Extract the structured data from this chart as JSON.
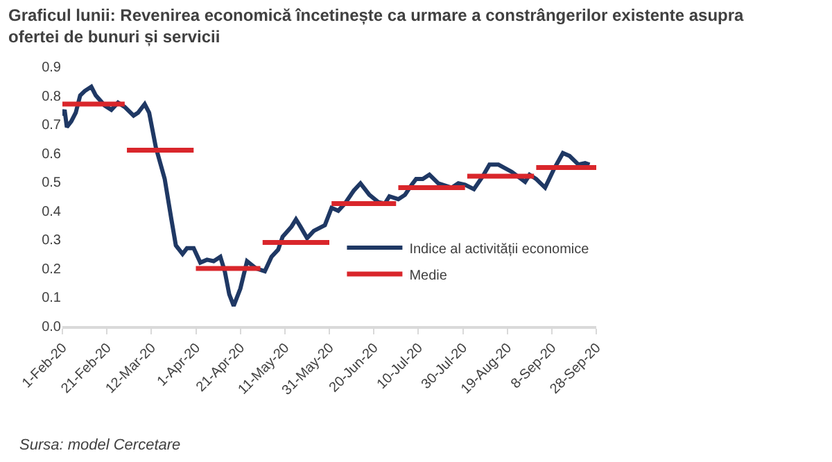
{
  "chart_data": {
    "type": "line",
    "title": "Graficul lunii: Revenirea economică încetinește ca urmare a constrângerilor existente asupra ofertei de bunuri și servicii",
    "annotations": [
      "Sursa: model Cercetare"
    ],
    "series": [
      {
        "name": "Indice al activității economice",
        "color": "#1f3864",
        "x": [
          "2020-02-01",
          "2020-02-02",
          "2020-02-03",
          "2020-02-05",
          "2020-02-07",
          "2020-02-09",
          "2020-02-11",
          "2020-02-14",
          "2020-02-16",
          "2020-02-20",
          "2020-02-23",
          "2020-02-26",
          "2020-02-29",
          "2020-03-04",
          "2020-03-06",
          "2020-03-09",
          "2020-03-11",
          "2020-03-14",
          "2020-03-18",
          "2020-03-21",
          "2020-03-23",
          "2020-03-26",
          "2020-03-28",
          "2020-03-31",
          "2020-04-03",
          "2020-04-06",
          "2020-04-09",
          "2020-04-12",
          "2020-04-14",
          "2020-04-16",
          "2020-04-18",
          "2020-04-21",
          "2020-04-24",
          "2020-04-28",
          "2020-05-02",
          "2020-05-05",
          "2020-05-08",
          "2020-05-10",
          "2020-05-14",
          "2020-05-16",
          "2020-05-18",
          "2020-05-21",
          "2020-05-24",
          "2020-05-29",
          "2020-06-01",
          "2020-06-04",
          "2020-06-07",
          "2020-06-11",
          "2020-06-14",
          "2020-06-18",
          "2020-06-22",
          "2020-06-25",
          "2020-06-27",
          "2020-07-01",
          "2020-07-04",
          "2020-07-07",
          "2020-07-09",
          "2020-07-12",
          "2020-07-15",
          "2020-07-19",
          "2020-07-25",
          "2020-07-28",
          "2020-07-31",
          "2020-08-04",
          "2020-08-08",
          "2020-08-11",
          "2020-08-15",
          "2020-08-21",
          "2020-08-27",
          "2020-08-29",
          "2020-09-01",
          "2020-09-05",
          "2020-09-09",
          "2020-09-13",
          "2020-09-16",
          "2020-09-20",
          "2020-09-23",
          "2020-09-25"
        ],
        "values": [
          0.73,
          0.75,
          0.69,
          0.71,
          0.74,
          0.8,
          0.815,
          0.83,
          0.8,
          0.765,
          0.75,
          0.775,
          0.76,
          0.73,
          0.74,
          0.77,
          0.74,
          0.62,
          0.51,
          0.37,
          0.28,
          0.25,
          0.27,
          0.27,
          0.22,
          0.23,
          0.225,
          0.24,
          0.19,
          0.11,
          0.07,
          0.13,
          0.225,
          0.2,
          0.19,
          0.24,
          0.265,
          0.31,
          0.345,
          0.37,
          0.345,
          0.305,
          0.33,
          0.35,
          0.41,
          0.4,
          0.425,
          0.47,
          0.495,
          0.455,
          0.43,
          0.425,
          0.45,
          0.44,
          0.455,
          0.49,
          0.51,
          0.51,
          0.525,
          0.495,
          0.48,
          0.495,
          0.49,
          0.475,
          0.52,
          0.56,
          0.56,
          0.535,
          0.5,
          0.525,
          0.51,
          0.48,
          0.545,
          0.6,
          0.59,
          0.56,
          0.565,
          0.56
        ]
      },
      {
        "name": "Medie",
        "color": "#d9262b",
        "x": [
          "2020-02-01",
          "2020-02-29",
          null,
          "2020-03-01",
          "2020-03-31",
          null,
          "2020-04-01",
          "2020-04-30",
          null,
          "2020-05-01",
          "2020-05-31",
          null,
          "2020-06-01",
          "2020-06-30",
          null,
          "2020-07-01",
          "2020-07-31",
          null,
          "2020-08-01",
          "2020-08-31",
          null,
          "2020-09-01",
          "2020-09-28"
        ],
        "values": [
          0.77,
          0.77,
          null,
          0.61,
          0.61,
          null,
          0.2,
          0.2,
          null,
          0.29,
          0.29,
          null,
          0.425,
          0.425,
          null,
          0.48,
          0.48,
          null,
          0.52,
          0.52,
          null,
          0.55,
          0.55
        ]
      }
    ],
    "xlim": [
      "2020-02-01",
      "2020-09-28"
    ],
    "xticks": [
      {
        "value": "2020-02-01",
        "label": "1-Feb-20"
      },
      {
        "value": "2020-02-21",
        "label": "21-Feb-20"
      },
      {
        "value": "2020-03-12",
        "label": "12-Mar-20"
      },
      {
        "value": "2020-04-01",
        "label": "1-Apr-20"
      },
      {
        "value": "2020-04-21",
        "label": "21-Apr-20"
      },
      {
        "value": "2020-05-11",
        "label": "11-May-20"
      },
      {
        "value": "2020-05-31",
        "label": "31-May-20"
      },
      {
        "value": "2020-06-20",
        "label": "20-Jun-20"
      },
      {
        "value": "2020-07-10",
        "label": "10-Jul-20"
      },
      {
        "value": "2020-07-30",
        "label": "30-Jul-20"
      },
      {
        "value": "2020-08-19",
        "label": "19-Aug-20"
      },
      {
        "value": "2020-09-08",
        "label": "8-Sep-20"
      },
      {
        "value": "2020-09-28",
        "label": "28-Sep-20"
      }
    ],
    "ylim": [
      0,
      0.9
    ],
    "yticks": [
      {
        "value": 0,
        "label": "0.0"
      },
      0.1,
      0.2,
      0.3,
      0.4,
      0.5,
      0.6,
      0.7,
      0.8,
      0.9
    ],
    "legend": "right",
    "marker": "none",
    "line_style": "solid"
  }
}
